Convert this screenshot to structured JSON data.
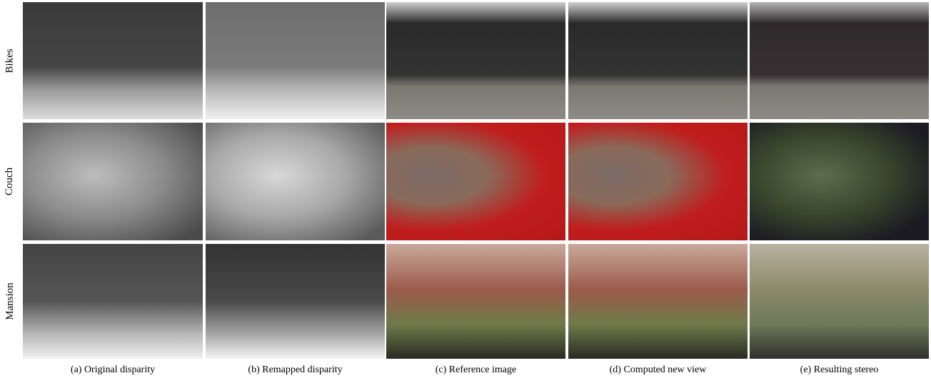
{
  "rows": [
    {
      "label": "Bikes"
    },
    {
      "label": "Couch"
    },
    {
      "label": "Mansion"
    }
  ],
  "captions": [
    "(a) Original disparity",
    "(b) Remapped disparity",
    "(c) Reference image",
    "(d) Computed new view",
    "(e) Resulting stereo"
  ]
}
